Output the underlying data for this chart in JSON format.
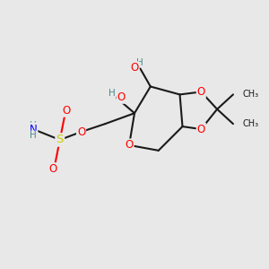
{
  "bg_color": "#e8e8e8",
  "atom_colors": {
    "C": "#1a1a1a",
    "O": "#ff0000",
    "S": "#cccc00",
    "N": "#0000ff",
    "H": "#4a8a8a"
  },
  "figsize": [
    3.0,
    3.0
  ],
  "dpi": 100
}
